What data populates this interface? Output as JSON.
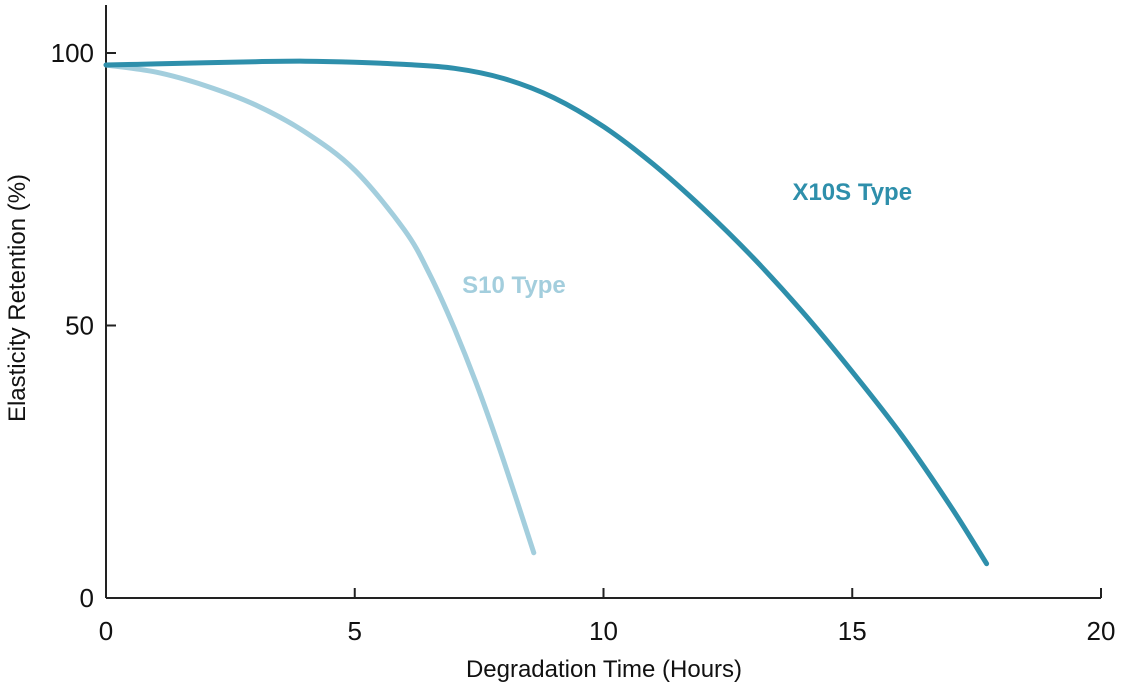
{
  "chart_data": {
    "type": "line",
    "xlabel": "Degradation Time (Hours)",
    "ylabel": "Elasticity Retention (%)",
    "xlim": [
      0,
      20
    ],
    "ylim": [
      0,
      108
    ],
    "x_ticks": [
      0,
      5,
      10,
      15,
      20
    ],
    "y_ticks": [
      0,
      50,
      100
    ],
    "grid": false,
    "legend": "inline labels",
    "series": [
      {
        "name": "X10S Type",
        "color": "#2e8fab",
        "x": [
          0,
          1,
          2,
          3,
          4,
          5,
          6,
          7,
          8,
          9,
          10,
          11,
          12,
          13,
          14,
          15,
          16,
          17,
          17.7
        ],
        "y": [
          97.8,
          98,
          98.2,
          98.4,
          98.5,
          98.3,
          97.9,
          97.2,
          95.3,
          91.8,
          86.5,
          79.6,
          71.5,
          62.5,
          52.5,
          41.5,
          29.8,
          16.5,
          6.3
        ]
      },
      {
        "name": "S10 Type",
        "color": "#a3cedd",
        "x": [
          0,
          1,
          2,
          3,
          4,
          5,
          6,
          6.5,
          7,
          7.5,
          8,
          8.6
        ],
        "y": [
          97.8,
          96.5,
          94,
          90.5,
          85.5,
          78.5,
          67.5,
          59.5,
          49.5,
          38,
          25,
          8.3
        ]
      }
    ],
    "labels": [
      {
        "text": "X10S Type",
        "series": 0,
        "x": 15,
        "y": 73
      },
      {
        "text": "S10 Type",
        "series": 1,
        "x": 8.2,
        "y": 56
      }
    ]
  }
}
